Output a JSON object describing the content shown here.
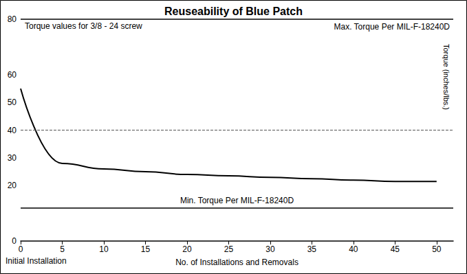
{
  "chart_data": {
    "type": "line",
    "title": "Reuseability of Blue Patch",
    "subtitle": "Torque values for 3/8 - 24 screw",
    "x_label": "No. of Installations and Removals",
    "y_label": "Torque (inches/lbs.)",
    "x": [
      0,
      5,
      10,
      15,
      20,
      25,
      30,
      35,
      40,
      45,
      50
    ],
    "values": [
      55,
      28,
      26,
      25,
      24,
      23.5,
      23,
      22.5,
      22,
      21.5,
      21.5
    ],
    "color": "#000000",
    "xlim": [
      0,
      52
    ],
    "xticks": [
      0,
      5,
      10,
      15,
      20,
      25,
      30,
      35,
      40,
      45,
      50
    ],
    "ylim": [
      0,
      80
    ],
    "yticks": [
      0,
      20,
      30,
      40,
      50,
      60,
      80
    ],
    "reference_lines": [
      {
        "value": 80,
        "label": "Max. Torque Per MIL-F-18240D",
        "line_style": "solid"
      },
      {
        "value": 40,
        "line_style": "dashed"
      },
      {
        "value": 12,
        "label": "Min. Torque Per MIL-F-18240D",
        "line_style": "solid"
      }
    ],
    "annotations": [
      {
        "x": 0,
        "text": "Initial Installation"
      }
    ],
    "grid": false
  }
}
